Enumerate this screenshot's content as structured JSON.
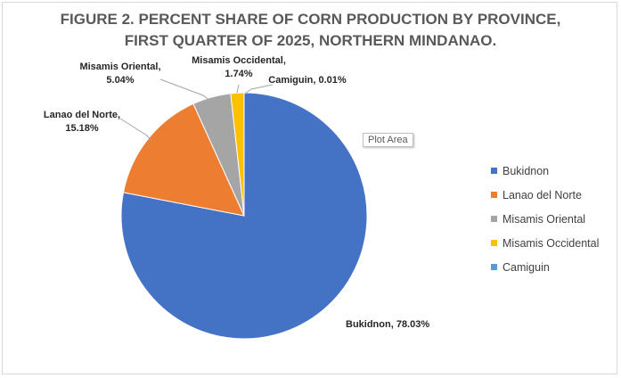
{
  "chart_data": {
    "type": "pie",
    "title_lines": [
      "FIGURE 2. PERCENT SHARE OF CORN PRODUCTION BY PROVINCE,",
      "FIRST QUARTER OF 2025, NORTHERN MINDANAO."
    ],
    "categories": [
      "Bukidnon",
      "Lanao del Norte",
      "Misamis Oriental",
      "Misamis Occidental",
      "Camiguin"
    ],
    "values": [
      78.03,
      15.18,
      5.04,
      1.74,
      0.01
    ],
    "colors": [
      "#4472c4",
      "#ed7d31",
      "#a5a5a5",
      "#ffc000",
      "#5b9bd5"
    ],
    "data_labels": [
      [
        "Bukidnon, 78.03%"
      ],
      [
        "Lanao del Norte,",
        "15.18%"
      ],
      [
        "Misamis Oriental,",
        "5.04%"
      ],
      [
        "Misamis Occidental,",
        "1.74%"
      ],
      [
        "Camiguin, 0.01%"
      ]
    ],
    "legend_position": "right",
    "start_angle": "12 o'clock, clockwise"
  },
  "ui": {
    "tooltip": "Plot Area"
  }
}
